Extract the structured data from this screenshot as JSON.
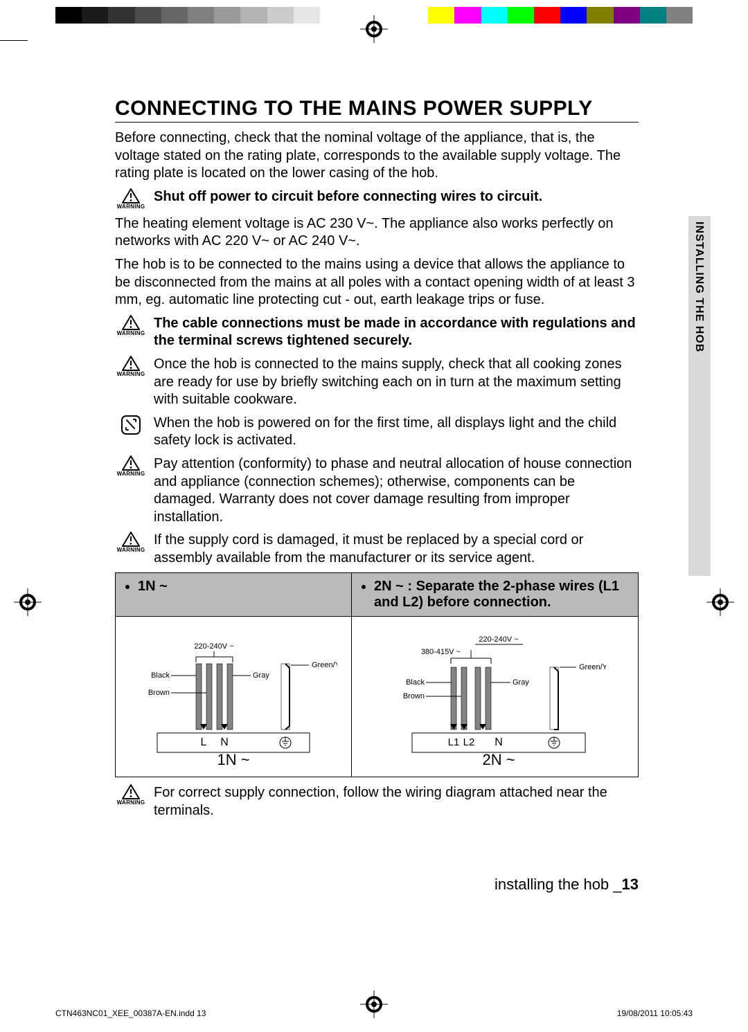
{
  "colorbar": {
    "left": [
      "#000000",
      "#1a1a1a",
      "#333333",
      "#4d4d4d",
      "#666666",
      "#808080",
      "#999999",
      "#b3b3b3",
      "#cccccc",
      "#e6e6e6",
      "#ffffff"
    ],
    "right": [
      "#ffffff",
      "#ffff00",
      "#ff00ff",
      "#00ffff",
      "#00ff00",
      "#ff0000",
      "#0000ff",
      "#808000",
      "#800080",
      "#008080",
      "#808080"
    ]
  },
  "heading": "CONNECTING TO THE MAINS POWER SUPPLY",
  "intro": "Before connecting, check that the nominal voltage of the appliance, that is, the voltage stated on the rating plate, corresponds to the available supply voltage. The rating plate is located on the lower casing of the hob.",
  "warnings": [
    {
      "icon": "warning",
      "sub": "WARNING",
      "bold": true,
      "text": "Shut off power to circuit before connecting wires to circuit."
    }
  ],
  "para2": "The heating element voltage is AC 230 V~. The appliance also works perfectly on networks with AC 220 V~ or AC 240 V~.",
  "para3": "The hob is to be connected to the mains using a device that allows the appliance to be disconnected from the mains at all poles with a contact opening width of at least 3 mm, eg. automatic line protecting cut - out, earth leakage trips or fuse.",
  "warnings2": [
    {
      "icon": "warning",
      "sub": "WARNING",
      "bold": true,
      "text": "The cable connections must be made in accordance with regulations and the terminal screws tightened securely."
    },
    {
      "icon": "warning",
      "sub": "WARNING",
      "bold": false,
      "text": "Once the hob is connected to the mains supply, check that all cooking zones are ready for use by briefly switching each on in turn at the maximum setting with suitable cookware."
    },
    {
      "icon": "note",
      "sub": "",
      "bold": false,
      "text": "When the hob is powered on for the first time, all displays light and the child safety lock is activated."
    },
    {
      "icon": "warning",
      "sub": "WARNING",
      "bold": false,
      "text": "Pay attention (conformity) to phase and neutral allocation of house connection and appliance (connection schemes); otherwise, components can be damaged. Warranty does not cover damage resulting from improper installation."
    },
    {
      "icon": "warning",
      "sub": "WARNING",
      "bold": false,
      "text": "If the supply cord is damaged, it must be replaced by a special cord or assembly available from the manufacturer or its service agent."
    }
  ],
  "table": {
    "head_left": "1N ~",
    "head_right": "2N ~ : Separate the 2-phase wires (L1 and L2) before connection.",
    "diag1": {
      "title": "1N ~",
      "voltage_top": "220-240V ~",
      "labels": {
        "black": "Black",
        "brown": "Brown",
        "gray": "Gray",
        "gy": "Green/Yellow",
        "L": "L",
        "N": "N"
      },
      "colors": {
        "wire_fill": "#848484",
        "wire_stroke": "#000000",
        "earth_stroke": "#000000"
      }
    },
    "diag2": {
      "title": "2N ~",
      "voltage_top": "220-240V ~",
      "voltage_mid": "380-415V ~",
      "labels": {
        "black": "Black",
        "brown": "Brown",
        "gray": "Gray",
        "gy": "Green/Yellow",
        "L1": "L1",
        "L2": "L2",
        "N": "N"
      },
      "colors": {
        "wire_fill": "#848484",
        "wire_stroke": "#000000",
        "earth_stroke": "#000000"
      }
    }
  },
  "warn_after_table": {
    "icon": "warning",
    "sub": "WARNING",
    "bold": false,
    "text": "For correct supply connection, follow the wiring diagram attached near the terminals."
  },
  "side_tab_text": "INSTALLING THE HOB",
  "footer_section": {
    "text": "installing the hob _",
    "page": "13"
  },
  "slug": {
    "left": "CTN463NC01_XEE_00387A-EN.indd   13",
    "right": "19/08/2011   10:05:43"
  }
}
